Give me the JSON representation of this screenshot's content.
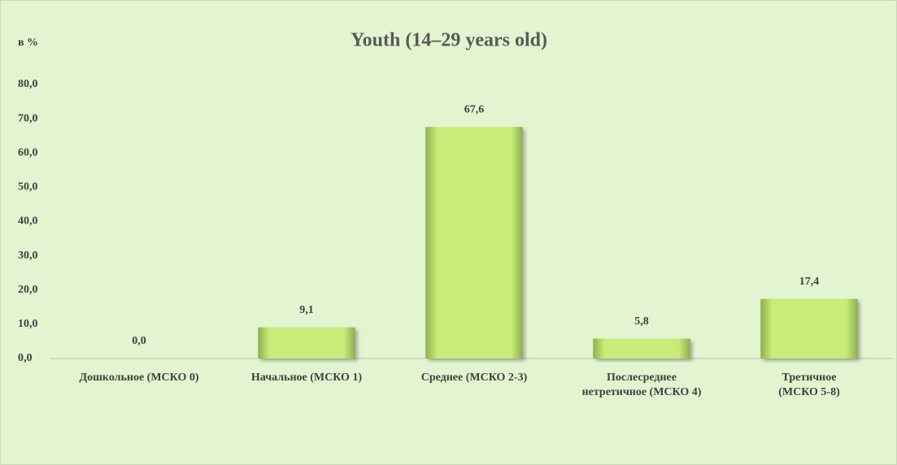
{
  "chart_data": {
    "type": "bar",
    "title": "Youth (14–29 years old)",
    "y_axis_label": "в %",
    "categories": [
      "Дошкольное (МСКО 0)",
      "Начальное (МСКО 1)",
      "Среднее (МСКО 2-3)",
      "Послесреднее\nнетретичное (МСКО 4)",
      "Третичное\n(МСКО 5-8)"
    ],
    "values": [
      0.0,
      9.1,
      67.6,
      5.8,
      17.4
    ],
    "value_labels": [
      "0,0",
      "9,1",
      "67,6",
      "5,8",
      "17,4"
    ],
    "color": "#c9ec78",
    "ylim": [
      0,
      80
    ],
    "yticks": [
      {
        "value": 0,
        "label": "0,0"
      },
      {
        "value": 10,
        "label": "10,0"
      },
      {
        "value": 20,
        "label": "20,0"
      },
      {
        "value": 30,
        "label": "30,0"
      },
      {
        "value": 40,
        "label": "40,0"
      },
      {
        "value": 50,
        "label": "50,0"
      },
      {
        "value": 60,
        "label": "60,0"
      },
      {
        "value": 70,
        "label": "70,0"
      },
      {
        "value": 80,
        "label": "80,0"
      }
    ],
    "grid": false
  }
}
